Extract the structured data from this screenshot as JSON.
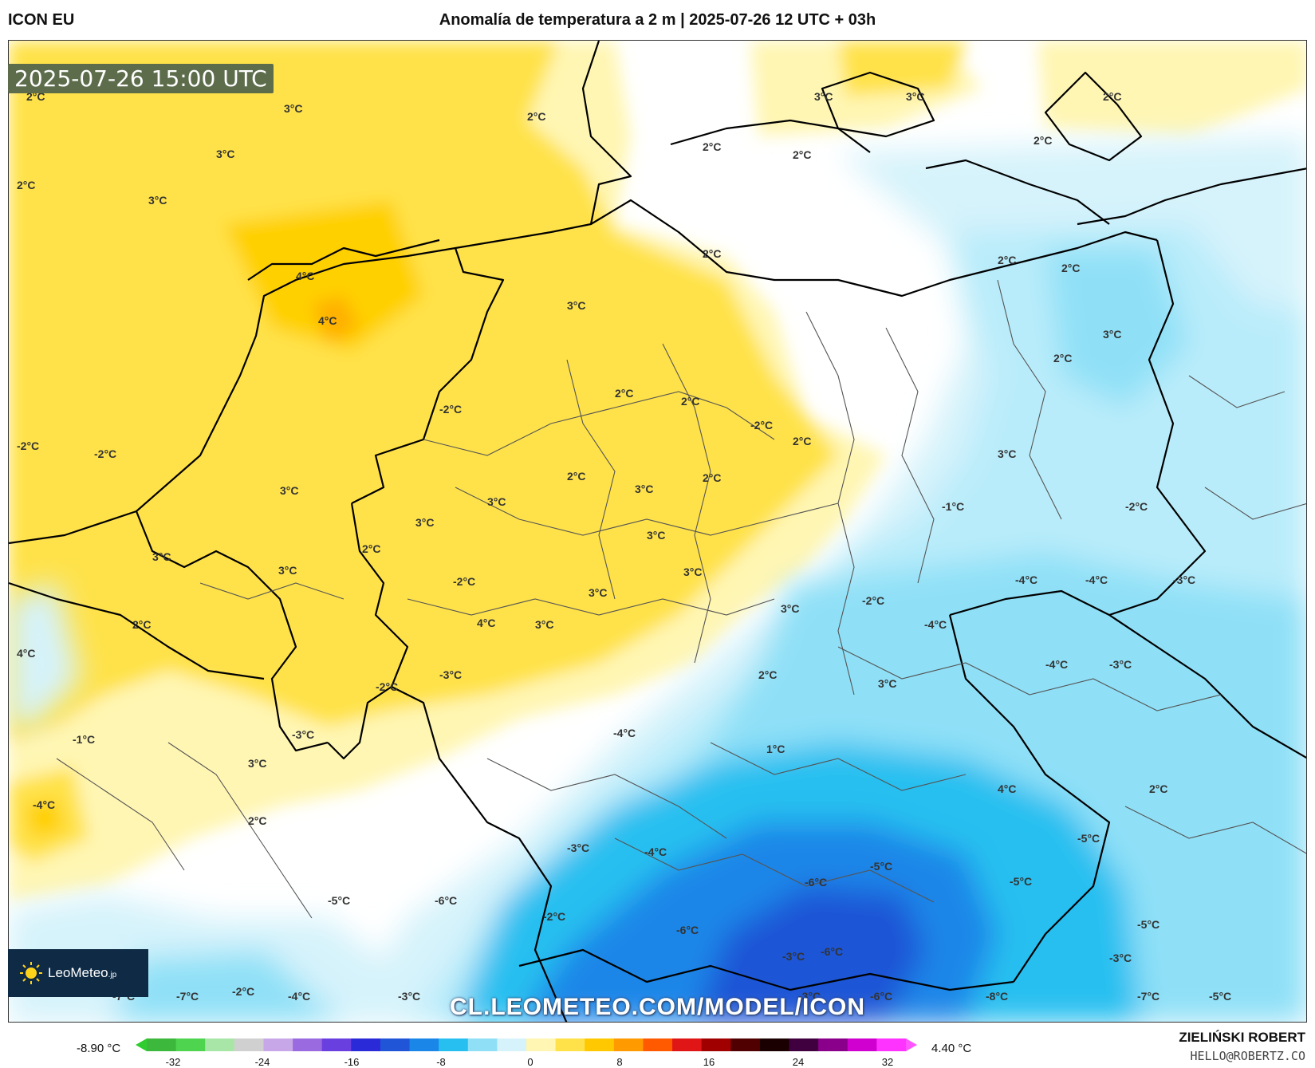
{
  "header": {
    "model": "ICON EU",
    "title": "Anomalía de temperatura a 2 m | 2025-07-26 12 UTC + 03h"
  },
  "map": {
    "valid_time": "2025-07-26 15:00 UTC",
    "watermark": "CL.LEOMETEO.COM/MODEL/ICON",
    "labels": [
      "2°C",
      "3°C",
      "2°C",
      "3°C",
      "2°C",
      "3°C",
      "3°C",
      "3°C",
      "2°C",
      "2°C",
      "2°C",
      "4°C",
      "4°C",
      "2°C",
      "2°C",
      "3°C",
      "2°C",
      "2°C",
      "3°C",
      "2°C",
      "2°C",
      "2°C",
      "-2°C",
      "-2°C",
      "-2°C",
      "-2°C",
      "2°C",
      "2°C",
      "2°C",
      "3°C",
      "3°C",
      "3°C",
      "3°C",
      "3°C",
      "2°C",
      "3°C",
      "3°C",
      "3°C",
      "3°C",
      "-1°C",
      "-2°C",
      "-2°C",
      "3°C",
      "4°C",
      "3°C",
      "2°C",
      "4°C",
      "3°C",
      "-2°C",
      "-4°C",
      "-4°C",
      "-3°C",
      "-4°C",
      "-4°C",
      "-3°C",
      "-2°C",
      "-3°C",
      "2°C",
      "3°C",
      "-4°C",
      "-3°C",
      "-1°C",
      "1°C",
      "3°C",
      "-4°C",
      "2°C",
      "4°C",
      "2°C",
      "-5°C",
      "-3°C",
      "-5°C",
      "-4°C",
      "-5°C",
      "-6°C",
      "-6°C",
      "-5°C",
      "-2°C",
      "-5°C",
      "-6°C",
      "-6°C",
      "-3°C",
      "-3°C",
      "-7°C",
      "-7°C",
      "-2°C",
      "-4°C",
      "-3°C",
      "-3°C",
      "-6°C",
      "-8°C",
      "-7°C",
      "-5°C",
      "-5°C",
      "-3°C"
    ],
    "logo": {
      "brand": "LeoMeteo",
      "suffix": ".jp"
    },
    "colors": {
      "warm_light": "#fff6b3",
      "warm": "#ffe24a",
      "warm_strong": "#ffc800",
      "cool_light": "#d6f3fb",
      "cool": "#8fe0f7",
      "cool_strong": "#27bff0",
      "cold": "#1a86e8",
      "cold_strong": "#1f55d6",
      "border": "#000000",
      "subdivision": "#555555"
    }
  },
  "colorbar": {
    "min_label": "-8.90 °C",
    "max_label": "4.40 °C",
    "ticks": [
      "-32",
      "-24",
      "-16",
      "-8",
      "0",
      "8",
      "16",
      "24",
      "32"
    ],
    "stops": [
      "#3cb83c",
      "#4fd44f",
      "#a8e6a8",
      "#d0d0d0",
      "#c7a7e8",
      "#9a6be0",
      "#6a3fe0",
      "#2a2ad8",
      "#1f55d6",
      "#1a86e8",
      "#27bff0",
      "#8fe0f7",
      "#d6f3fb",
      "#fff6b3",
      "#ffe24a",
      "#ffc800",
      "#ff9a00",
      "#ff5a00",
      "#e01515",
      "#a00000",
      "#500000",
      "#1a0000",
      "#400040",
      "#8a008a",
      "#d000d0",
      "#ff33ff"
    ]
  },
  "footer": {
    "author": "ZIELIŃSKI ROBERT",
    "email": "HELLO@ROBERTZ.CO"
  }
}
